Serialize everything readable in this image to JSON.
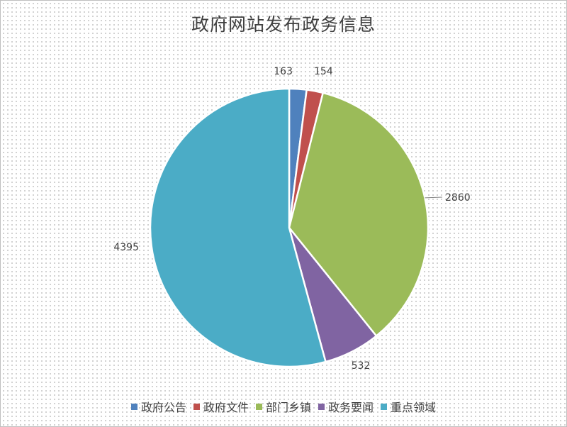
{
  "chart_data": {
    "type": "pie",
    "title": "政府网站发布政务信息",
    "categories": [
      "政府公告",
      "政府文件",
      "部门乡镇",
      "政务要闻",
      "重点领域"
    ],
    "values": [
      163,
      154,
      2860,
      532,
      4395
    ],
    "colors": [
      "#4f81bd",
      "#c0504d",
      "#9bbb59",
      "#8064a2",
      "#4bacc6"
    ],
    "data_labels": [
      "163",
      "154",
      "2860",
      "532",
      "4395"
    ],
    "legend_position": "bottom",
    "start_angle": "top",
    "direction": "clockwise"
  }
}
